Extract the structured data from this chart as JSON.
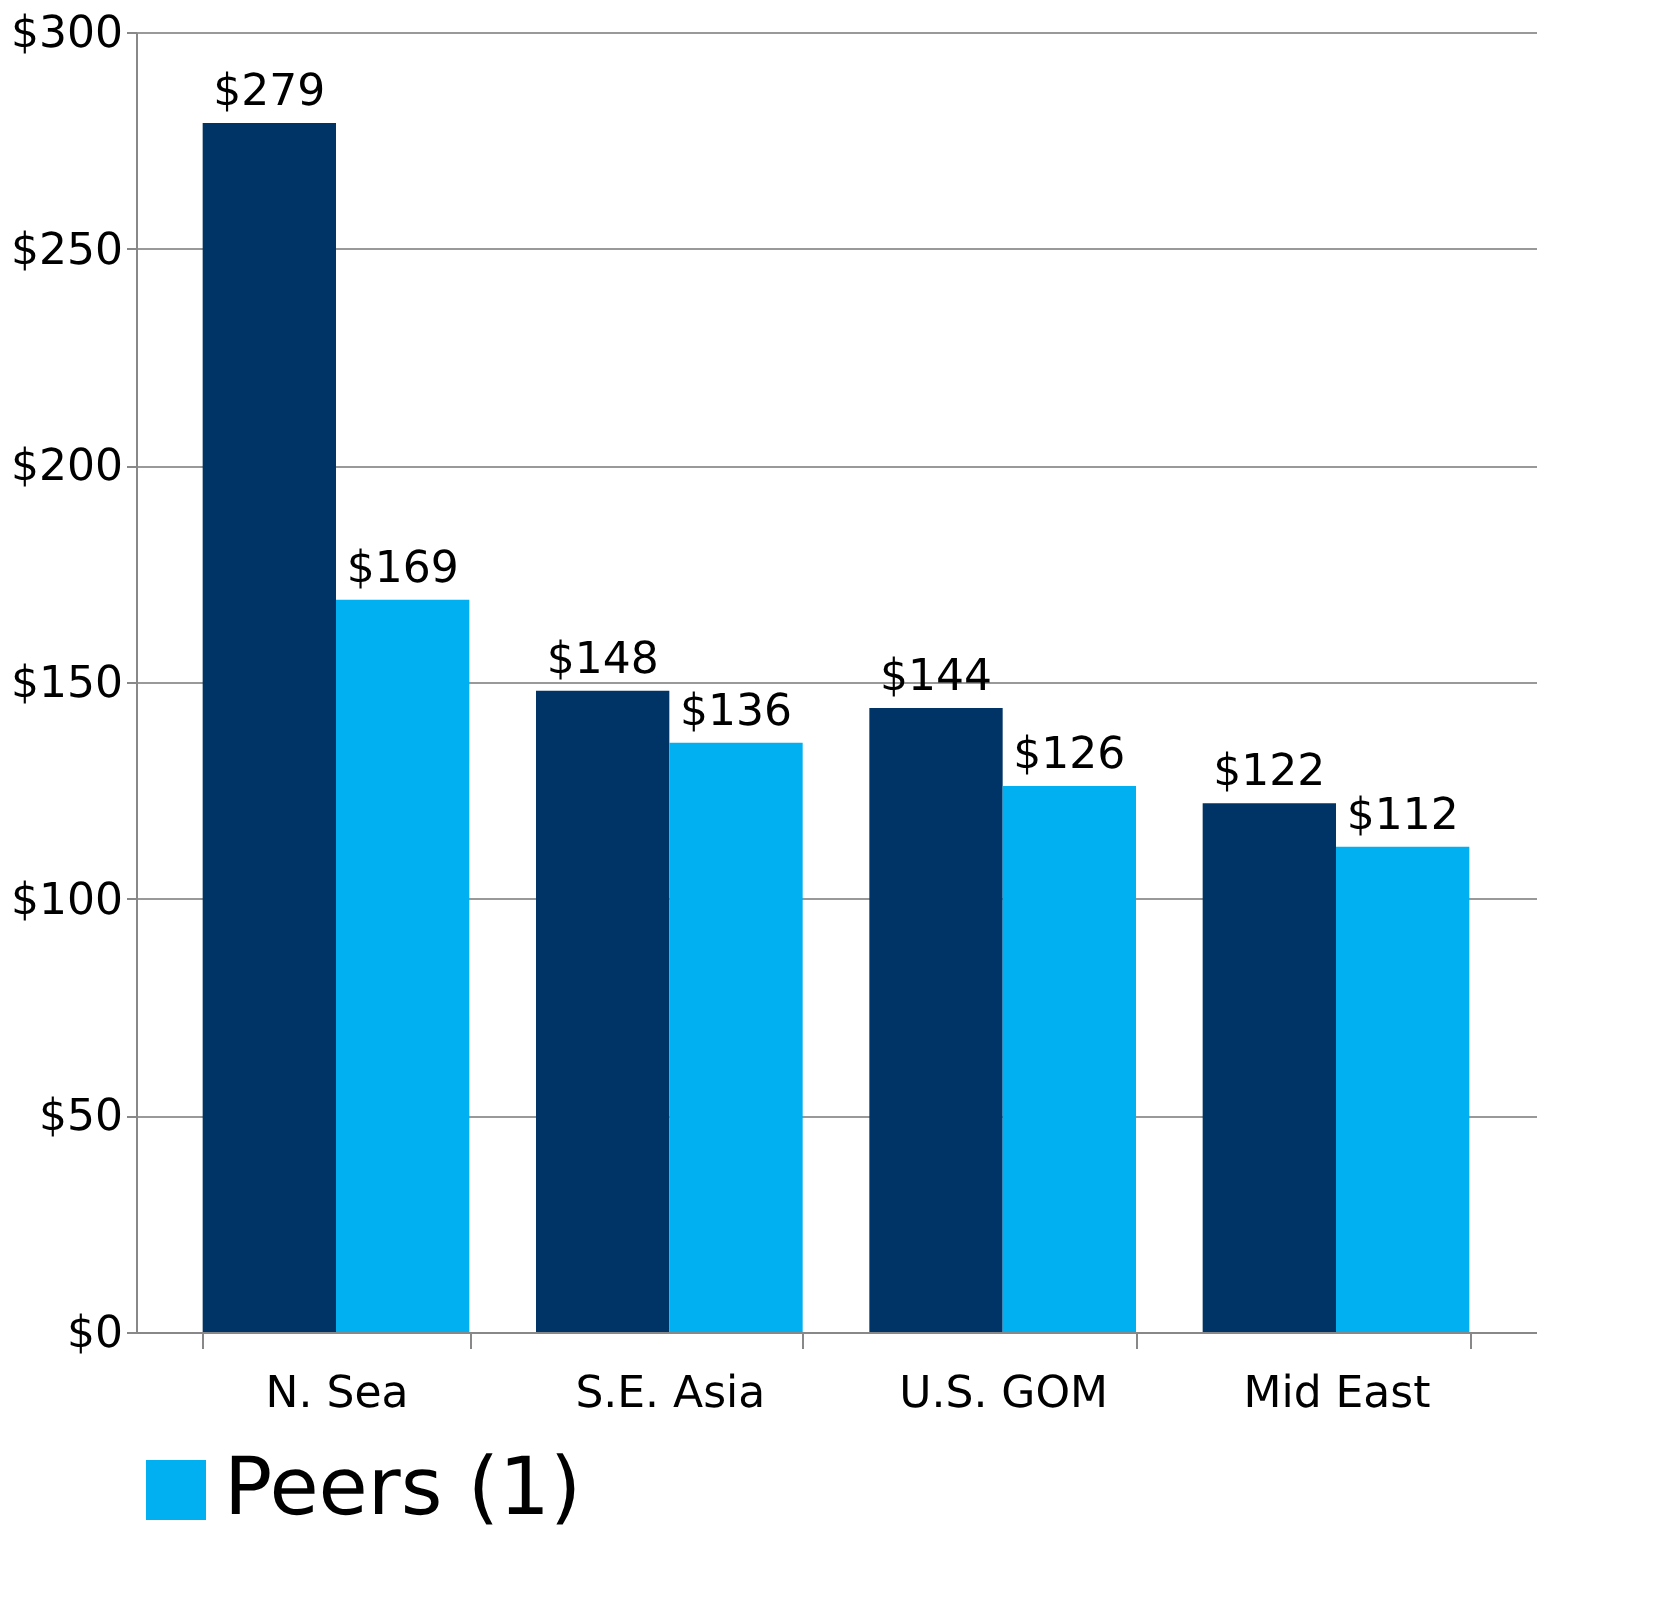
{
  "chart_data": {
    "type": "bar",
    "categories": [
      "N. Sea",
      "S.E. Asia",
      "U.S. GOM",
      "Mid East"
    ],
    "series": [
      {
        "color": "#003366",
        "values": [
          279,
          148,
          144,
          122
        ],
        "value_labels": [
          "$279",
          "$148",
          "$144",
          "$122"
        ]
      },
      {
        "name": "Peers (1)",
        "color": "#00b0f0",
        "values": [
          169,
          136,
          126,
          112
        ],
        "value_labels": [
          "$169",
          "$136",
          "$126",
          "$112"
        ]
      }
    ],
    "ylim": [
      0,
      300
    ],
    "yticks": [
      {
        "value": 0,
        "label": "$0"
      },
      {
        "value": 50,
        "label": "$50"
      },
      {
        "value": 100,
        "label": "$100"
      },
      {
        "value": 150,
        "label": "$150"
      },
      {
        "value": 200,
        "label": "$200"
      },
      {
        "value": 250,
        "label": "$250"
      },
      {
        "value": 300,
        "label": "$300"
      }
    ],
    "grid": "y",
    "legend": "bottom"
  }
}
